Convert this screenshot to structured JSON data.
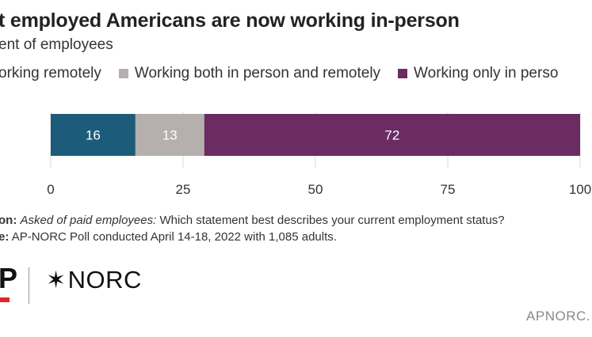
{
  "header": {
    "title": "t employed Americans are now working in-person",
    "subtitle": "ent of employees"
  },
  "legend": [
    {
      "label": "orking remotely",
      "color": "#1d5b7a"
    },
    {
      "label": "Working both in person and remotely",
      "color": "#b5b0ae"
    },
    {
      "label": "Working only in perso",
      "color": "#6a2c63"
    }
  ],
  "chart_data": {
    "type": "bar",
    "orientation": "horizontal",
    "stacked": true,
    "categories": [
      ""
    ],
    "series": [
      {
        "name": "orking remotely",
        "values": [
          16
        ],
        "color": "#1d5b7a"
      },
      {
        "name": "Working both in person and remotely",
        "values": [
          13
        ],
        "color": "#b5b0ae"
      },
      {
        "name": "Working only in perso",
        "values": [
          72
        ],
        "color": "#6a2c63"
      }
    ],
    "data_labels": [
      "16",
      "13",
      "72"
    ],
    "xlim": [
      0,
      100
    ],
    "xticks": [
      "0",
      "25",
      "50",
      "75",
      "100"
    ],
    "grid": true
  },
  "notes": {
    "question_label": "on:",
    "question_italic": "Asked of paid employees:",
    "question_text": "Which statement best describes your current employment status?",
    "source_label": "e:",
    "source_text": "AP-NORC Poll conducted April 14-18, 2022 with 1,085 adults."
  },
  "branding": {
    "ap_logo": "P",
    "norc_star": "✶",
    "norc_logo": "NORC",
    "url": "APNORC."
  }
}
